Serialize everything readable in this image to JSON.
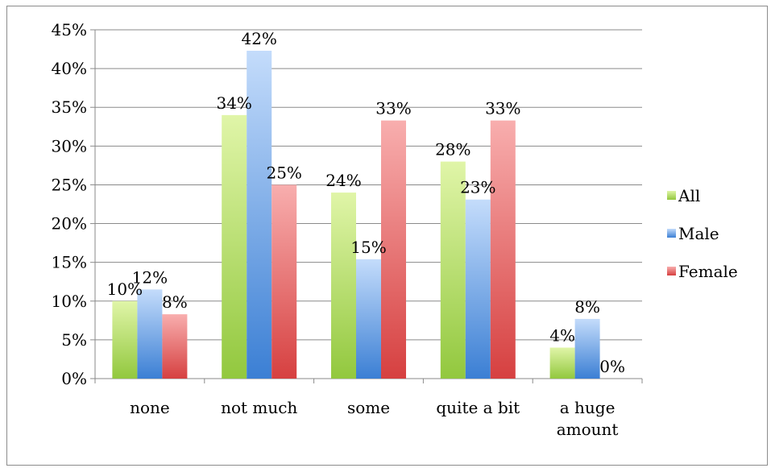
{
  "chart_data": {
    "type": "bar",
    "categories": [
      "none",
      "not much",
      "some",
      "quite a bit",
      "a huge amount"
    ],
    "category_lines": [
      [
        "none"
      ],
      [
        "not much"
      ],
      [
        "some"
      ],
      [
        "quite a bit"
      ],
      [
        "a huge",
        "amount"
      ]
    ],
    "series": [
      {
        "name": "All",
        "values": [
          10,
          34,
          24,
          28,
          4
        ],
        "labels": [
          "10%",
          "34%",
          "24%",
          "28%",
          "4%"
        ],
        "color": "#92c83e",
        "color_light": "#e0f5a8"
      },
      {
        "name": "Male",
        "values": [
          11.5,
          42.3,
          15.4,
          23.1,
          7.7
        ],
        "labels": [
          "12%",
          "42%",
          "15%",
          "23%",
          "8%"
        ],
        "color": "#3b7fd4",
        "color_light": "#c4dcfb"
      },
      {
        "name": "Female",
        "values": [
          8.3,
          25,
          33.3,
          33.3,
          0
        ],
        "labels": [
          "8%",
          "25%",
          "33%",
          "33%",
          "0%"
        ],
        "color": "#d64040",
        "color_light": "#f8aeae"
      }
    ],
    "ylim": [
      0,
      45
    ],
    "yticks": [
      0,
      5,
      10,
      15,
      20,
      25,
      30,
      35,
      40,
      45
    ],
    "ytick_labels": [
      "0%",
      "5%",
      "10%",
      "15%",
      "20%",
      "25%",
      "30%",
      "35%",
      "40%",
      "45%"
    ],
    "xlabel": "",
    "ylabel": "",
    "grid": true,
    "legend": "right"
  }
}
